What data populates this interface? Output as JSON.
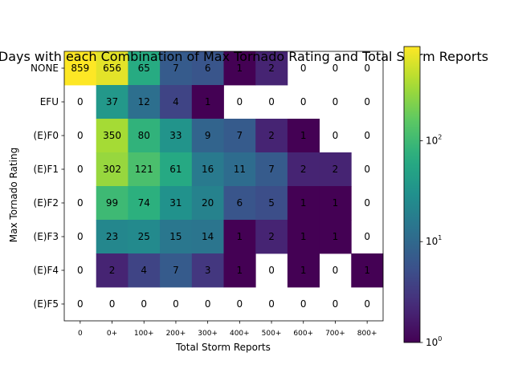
{
  "chart_data": {
    "type": "heatmap",
    "title": "ew Days with each Combination of Max Tornado Rating and Total Storm Reports",
    "xlabel": "Total Storm Reports",
    "ylabel": "Max Tornado Rating",
    "x_categories": [
      "0",
      "0+",
      "100+",
      "200+",
      "300+",
      "400+",
      "500+",
      "600+",
      "700+",
      "800+"
    ],
    "y_categories": [
      "NONE",
      "EFU",
      "(E)F0",
      "(E)F1",
      "(E)F2",
      "(E)F3",
      "(E)F4",
      "(E)F5"
    ],
    "values": [
      [
        859,
        656,
        65,
        7,
        6,
        1,
        2,
        0,
        0,
        0
      ],
      [
        0,
        37,
        12,
        4,
        1,
        0,
        0,
        0,
        0,
        0
      ],
      [
        0,
        350,
        80,
        33,
        9,
        7,
        2,
        1,
        0,
        0
      ],
      [
        0,
        302,
        121,
        61,
        16,
        11,
        7,
        2,
        2,
        0
      ],
      [
        0,
        99,
        74,
        31,
        20,
        6,
        5,
        1,
        1,
        0
      ],
      [
        0,
        23,
        25,
        15,
        14,
        1,
        2,
        1,
        1,
        0
      ],
      [
        0,
        2,
        4,
        7,
        3,
        1,
        0,
        1,
        0,
        1
      ],
      [
        0,
        0,
        0,
        0,
        0,
        0,
        0,
        0,
        0,
        0
      ]
    ],
    "color_scale": "log",
    "colormap": "viridis",
    "zero_cells": "blank",
    "colorbar": {
      "range": [
        1,
        859
      ],
      "ticks": [
        {
          "value": 1,
          "label": "10",
          "exp": "0"
        },
        {
          "value": 10,
          "label": "10",
          "exp": "1"
        },
        {
          "value": 100,
          "label": "10",
          "exp": "2"
        }
      ]
    }
  }
}
